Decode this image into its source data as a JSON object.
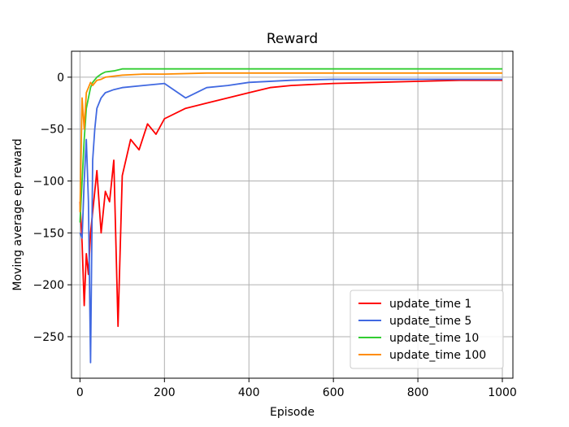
{
  "chart_data": {
    "type": "line",
    "title": "Reward",
    "xlabel": "Episode",
    "ylabel": "Moving average ep reward",
    "xlim": [
      -20,
      1025
    ],
    "ylim": [
      -290,
      25
    ],
    "xticks": [
      0,
      200,
      400,
      600,
      800,
      1000
    ],
    "xtick_labels": [
      "0",
      "200",
      "400",
      "600",
      "800",
      "1000"
    ],
    "yticks": [
      0,
      -50,
      -100,
      -150,
      -200,
      -250
    ],
    "ytick_labels": [
      "0",
      "−50",
      "−100",
      "−150",
      "−200",
      "−250"
    ],
    "grid": true,
    "legend_position": "lower-right",
    "series": [
      {
        "name": "update_time 1",
        "color": "#ff0000",
        "x": [
          0,
          5,
          10,
          15,
          20,
          25,
          30,
          35,
          40,
          50,
          60,
          70,
          80,
          90,
          100,
          120,
          140,
          160,
          180,
          200,
          250,
          300,
          350,
          400,
          450,
          500,
          600,
          700,
          800,
          900,
          1000
        ],
        "y": [
          -120,
          -160,
          -220,
          -170,
          -190,
          -150,
          -130,
          -110,
          -90,
          -150,
          -110,
          -120,
          -80,
          -240,
          -95,
          -60,
          -70,
          -45,
          -55,
          -40,
          -30,
          -25,
          -20,
          -15,
          -10,
          -8,
          -6,
          -5,
          -4,
          -3,
          -3
        ]
      },
      {
        "name": "update_time 5",
        "color": "#4169e1",
        "x": [
          0,
          5,
          10,
          15,
          20,
          25,
          30,
          35,
          40,
          50,
          60,
          80,
          100,
          150,
          200,
          250,
          300,
          350,
          400,
          500,
          600,
          800,
          1000
        ],
        "y": [
          -150,
          -155,
          -100,
          -60,
          -120,
          -275,
          -80,
          -50,
          -30,
          -20,
          -15,
          -12,
          -10,
          -8,
          -6,
          -20,
          -10,
          -8,
          -5,
          -3,
          -2,
          -2,
          -2
        ]
      },
      {
        "name": "update_time 10",
        "color": "#32cd32",
        "x": [
          0,
          5,
          10,
          15,
          20,
          25,
          30,
          40,
          50,
          60,
          80,
          100,
          150,
          200,
          300,
          400,
          500,
          600,
          800,
          1000
        ],
        "y": [
          -140,
          -100,
          -60,
          -30,
          -20,
          -10,
          -5,
          0,
          3,
          5,
          6,
          8,
          8,
          8,
          8,
          8,
          8,
          8,
          8,
          8
        ]
      },
      {
        "name": "update_time 100",
        "color": "#ff8c00",
        "x": [
          0,
          5,
          10,
          15,
          20,
          25,
          30,
          40,
          50,
          60,
          80,
          100,
          150,
          200,
          300,
          400,
          500,
          600,
          800,
          1000
        ],
        "y": [
          -130,
          -20,
          -50,
          -15,
          -10,
          -5,
          -8,
          -3,
          -2,
          0,
          1,
          2,
          3,
          3,
          4,
          4,
          4,
          4,
          4,
          4
        ]
      }
    ]
  }
}
